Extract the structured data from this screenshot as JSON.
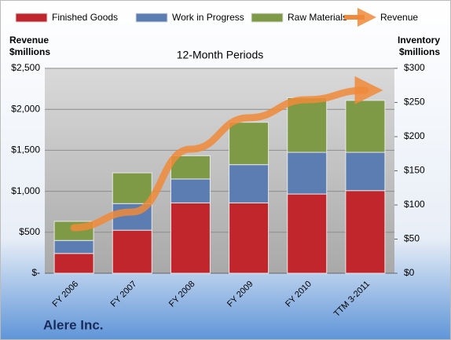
{
  "chart_data": {
    "type": "bar",
    "subtitle": "12-Month Periods",
    "y_label": [
      "Revenue",
      "$millions"
    ],
    "y2_label": [
      "Inventory",
      "$millions"
    ],
    "footer": "Alere Inc.",
    "categories": [
      "FY 2006",
      "FY 2007",
      "FY 2008",
      "FY 2009",
      "FY 2010",
      "TTM 3-2011"
    ],
    "stacked": true,
    "legend": "top",
    "series": [
      {
        "name": "Finished Goods",
        "color": "#c0262c",
        "axis": "y2",
        "values": [
          29,
          63,
          103,
          103,
          116,
          121
        ]
      },
      {
        "name": "Work in Progress",
        "color": "#5b7db1",
        "axis": "y2",
        "values": [
          19,
          39,
          35,
          56,
          61,
          56
        ]
      },
      {
        "name": "Raw Materials",
        "color": "#7e9a46",
        "axis": "y2",
        "values": [
          28,
          45,
          34,
          62,
          80,
          76
        ]
      },
      {
        "name": "Revenue",
        "color": "#f08a3a",
        "type": "line",
        "axis": "y",
        "values": [
          556,
          747,
          1513,
          1897,
          2117,
          2232
        ]
      }
    ],
    "ylim": [
      0,
      2500
    ],
    "yticks": [
      {
        "value": 0,
        "label": "$-"
      },
      {
        "value": 500,
        "label": "$500"
      },
      {
        "value": 1000,
        "label": "$1,000"
      },
      {
        "value": 1500,
        "label": "$1,500"
      },
      {
        "value": 2000,
        "label": "$2,000"
      },
      {
        "value": 2500,
        "label": "$2,500"
      }
    ],
    "y2lim": [
      0,
      300
    ],
    "y2ticks": [
      {
        "value": 0,
        "label": "$0"
      },
      {
        "value": 50,
        "label": "$50"
      },
      {
        "value": 100,
        "label": "$100"
      },
      {
        "value": 150,
        "label": "$150"
      },
      {
        "value": 200,
        "label": "$200"
      },
      {
        "value": 250,
        "label": "$250"
      },
      {
        "value": 300,
        "label": "$300"
      }
    ],
    "grid": true
  }
}
